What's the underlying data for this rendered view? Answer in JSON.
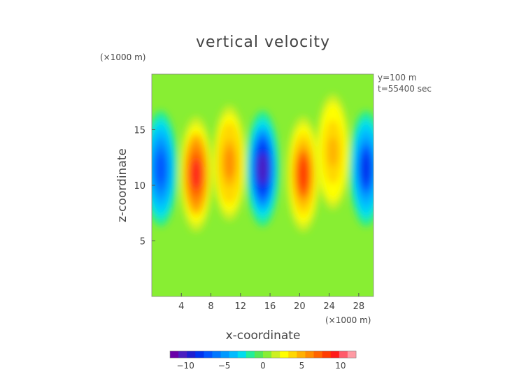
{
  "chart_data": {
    "type": "heatmap",
    "title": "vertical velocity",
    "xlabel": "x-coordinate",
    "ylabel": "z-coordinate",
    "x_unit": "(×1000 m)",
    "y_unit": "(×1000 m)",
    "annotations": [
      "y=100 m",
      "t=55400 sec"
    ],
    "xlim": [
      0,
      30
    ],
    "ylim": [
      0,
      20
    ],
    "x_ticks": [
      4,
      8,
      12,
      16,
      20,
      24,
      28
    ],
    "y_ticks": [
      5,
      10,
      15
    ],
    "colorbar": {
      "range": [
        -12,
        12
      ],
      "ticks": [
        -10,
        -5,
        0,
        5,
        10
      ],
      "colors": [
        "#6a00a8",
        "#4b1fc0",
        "#1f1fd0",
        "#0033ee",
        "#0055ff",
        "#0077ff",
        "#0099ff",
        "#00bbff",
        "#00ddee",
        "#22ee99",
        "#55e855",
        "#88ee33",
        "#ccf022",
        "#ffff00",
        "#ffd700",
        "#ffb000",
        "#ff8c00",
        "#ff6400",
        "#ff3c00",
        "#ff1a1a",
        "#ff5a6a",
        "#ff9aa4"
      ]
    },
    "background_value": 0,
    "features": [
      {
        "kind": "downdraft",
        "x": 1.2,
        "z": 11.5,
        "peak": -7
      },
      {
        "kind": "updraft",
        "x": 6.0,
        "z": 11.0,
        "peak": 9
      },
      {
        "kind": "updraft",
        "x": 10.5,
        "z": 12.0,
        "peak": 6
      },
      {
        "kind": "downdraft",
        "x": 15.0,
        "z": 11.5,
        "peak": -10
      },
      {
        "kind": "updraft",
        "x": 20.5,
        "z": 11.0,
        "peak": 8
      },
      {
        "kind": "updraft",
        "x": 24.5,
        "z": 13.0,
        "peak": 5
      },
      {
        "kind": "downdraft",
        "x": 29.0,
        "z": 11.5,
        "peak": -8
      }
    ]
  }
}
